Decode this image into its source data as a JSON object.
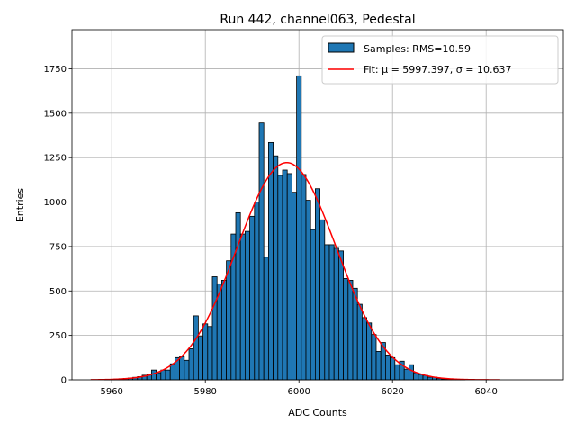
{
  "chart_data": {
    "type": "bar",
    "title": "Run 442, channel063, Pedestal",
    "xlabel": "ADC Counts",
    "ylabel": "Entries",
    "xlim": [
      5951.5,
      6056.5
    ],
    "ylim": [
      0,
      1970
    ],
    "x_ticks": [
      5960,
      5980,
      6000,
      6020,
      6040
    ],
    "y_ticks": [
      0,
      250,
      500,
      750,
      1000,
      1250,
      1500,
      1750
    ],
    "grid": true,
    "legend_position": "top-right",
    "bar_color": "#1f77b4",
    "bar_edge_color": "#000000",
    "fit_color": "#ff0000",
    "bin_width": 1,
    "series": [
      {
        "name": "Samples: RMS=10.59",
        "bins": [
          5959,
          5960,
          5961,
          5962,
          5963,
          5964,
          5965,
          5966,
          5967,
          5968,
          5969,
          5970,
          5971,
          5972,
          5973,
          5974,
          5975,
          5976,
          5977,
          5978,
          5979,
          5980,
          5981,
          5982,
          5983,
          5984,
          5985,
          5986,
          5987,
          5988,
          5989,
          5990,
          5991,
          5992,
          5993,
          5994,
          5995,
          5996,
          5997,
          5998,
          5999,
          6000,
          6001,
          6002,
          6003,
          6004,
          6005,
          6006,
          6007,
          6008,
          6009,
          6010,
          6011,
          6012,
          6013,
          6014,
          6015,
          6016,
          6017,
          6018,
          6019,
          6020,
          6021,
          6022,
          6023,
          6024,
          6025,
          6026,
          6027,
          6028,
          6029,
          6030,
          6031,
          6032,
          6033,
          6034,
          6035
        ],
        "counts": [
          2,
          3,
          4,
          6,
          8,
          10,
          14,
          18,
          26,
          30,
          55,
          40,
          55,
          55,
          90,
          125,
          130,
          110,
          175,
          360,
          245,
          315,
          300,
          580,
          540,
          560,
          670,
          820,
          940,
          820,
          835,
          920,
          1000,
          1445,
          690,
          1335,
          1260,
          1150,
          1180,
          1160,
          1055,
          1710,
          1155,
          1010,
          845,
          1075,
          900,
          760,
          760,
          740,
          725,
          570,
          560,
          515,
          425,
          350,
          320,
          255,
          160,
          210,
          140,
          125,
          85,
          105,
          60,
          85,
          40,
          30,
          25,
          15,
          15,
          8,
          5,
          3,
          2,
          1,
          1
        ]
      },
      {
        "name": "Fit: μ = 5997.397, σ = 10.637",
        "type": "line",
        "mu": 5997.397,
        "sigma": 10.637,
        "amplitude": 1222,
        "x_range": [
          5955.5,
          6043
        ]
      }
    ]
  }
}
